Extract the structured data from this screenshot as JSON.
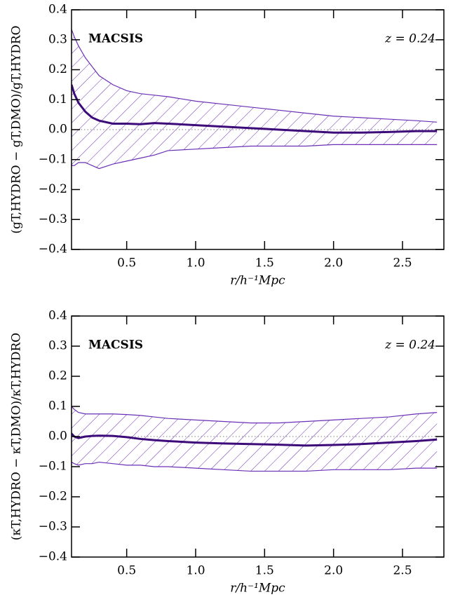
{
  "chart_data": [
    {
      "type": "line",
      "xlabel": "r/h⁻¹Mpc",
      "ylabel": "(gT,HYDRO − gT,DMO)/gT,HYDRO",
      "annotations": [
        "MACSIS",
        "z = 0.24"
      ],
      "x": [
        0.1,
        0.12,
        0.15,
        0.2,
        0.25,
        0.3,
        0.4,
        0.5,
        0.6,
        0.7,
        0.8,
        1.0,
        1.2,
        1.4,
        1.6,
        1.8,
        2.0,
        2.2,
        2.4,
        2.6,
        2.75
      ],
      "series": [
        {
          "color": "#3d0a7a",
          "values": [
            0.15,
            0.12,
            0.09,
            0.06,
            0.04,
            0.03,
            0.02,
            0.02,
            0.018,
            0.022,
            0.02,
            0.015,
            0.01,
            0.005,
            0,
            -0.005,
            -0.01,
            -0.01,
            -0.008,
            -0.005,
            -0.005
          ]
        }
      ],
      "band": {
        "color": "#6a2fb5",
        "upper": [
          0.335,
          0.31,
          0.28,
          0.24,
          0.21,
          0.18,
          0.15,
          0.13,
          0.12,
          0.115,
          0.11,
          0.095,
          0.085,
          0.075,
          0.065,
          0.055,
          0.045,
          0.04,
          0.035,
          0.03,
          0.025
        ],
        "lower": [
          -0.12,
          -0.12,
          -0.11,
          -0.11,
          -0.12,
          -0.13,
          -0.115,
          -0.105,
          -0.095,
          -0.085,
          -0.07,
          -0.065,
          -0.06,
          -0.055,
          -0.055,
          -0.055,
          -0.05,
          -0.05,
          -0.05,
          -0.05,
          -0.05
        ]
      },
      "xlim": [
        0.1,
        2.8
      ],
      "ylim": [
        -0.4,
        0.4
      ],
      "xticks": [
        0.5,
        {
          "value": 1,
          "label": "1.0"
        },
        1.5,
        {
          "value": 2,
          "label": "2.0"
        },
        2.5
      ],
      "yticks": [
        {
          "value": -0.4,
          "label": "−0.4"
        },
        {
          "value": -0.3,
          "label": "−0.3"
        },
        {
          "value": -0.2,
          "label": "−0.2"
        },
        {
          "value": -0.1,
          "label": "−0.1"
        },
        {
          "value": 0,
          "label": "0.0"
        },
        0.1,
        0.2,
        0.3,
        0.4
      ]
    },
    {
      "type": "line",
      "xlabel": "r/h⁻¹Mpc",
      "ylabel": "(κT,HYDRO − κT,DMO)/κT,HYDRO",
      "annotations": [
        "MACSIS",
        "z = 0.24"
      ],
      "x": [
        0.1,
        0.12,
        0.15,
        0.2,
        0.25,
        0.3,
        0.4,
        0.5,
        0.6,
        0.7,
        0.8,
        1.0,
        1.2,
        1.4,
        1.6,
        1.8,
        2.0,
        2.2,
        2.4,
        2.6,
        2.75
      ],
      "series": [
        {
          "color": "#3d0a7a",
          "values": [
            0.01,
            0,
            -0.005,
            0,
            0.002,
            0.003,
            0.002,
            -0.002,
            -0.008,
            -0.012,
            -0.015,
            -0.02,
            -0.023,
            -0.025,
            -0.027,
            -0.03,
            -0.028,
            -0.025,
            -0.02,
            -0.015,
            -0.01
          ]
        }
      ],
      "band": {
        "color": "#6a2fb5",
        "upper": [
          0.1,
          0.09,
          0.08,
          0.075,
          0.075,
          0.075,
          0.075,
          0.073,
          0.07,
          0.065,
          0.06,
          0.055,
          0.05,
          0.045,
          0.045,
          0.05,
          0.055,
          0.06,
          0.065,
          0.075,
          0.08
        ],
        "lower": [
          -0.085,
          -0.09,
          -0.095,
          -0.09,
          -0.09,
          -0.085,
          -0.09,
          -0.095,
          -0.095,
          -0.1,
          -0.1,
          -0.105,
          -0.11,
          -0.115,
          -0.115,
          -0.115,
          -0.11,
          -0.11,
          -0.11,
          -0.105,
          -0.105
        ]
      },
      "xlim": [
        0.1,
        2.8
      ],
      "ylim": [
        -0.4,
        0.4
      ],
      "xticks": [
        0.5,
        {
          "value": 1,
          "label": "1.0"
        },
        1.5,
        {
          "value": 2,
          "label": "2.0"
        },
        2.5
      ],
      "yticks": [
        {
          "value": -0.4,
          "label": "−0.4"
        },
        {
          "value": -0.3,
          "label": "−0.3"
        },
        {
          "value": -0.2,
          "label": "−0.2"
        },
        {
          "value": -0.1,
          "label": "−0.1"
        },
        {
          "value": 0,
          "label": "0.0"
        },
        0.1,
        0.2,
        0.3,
        0.4
      ]
    }
  ]
}
